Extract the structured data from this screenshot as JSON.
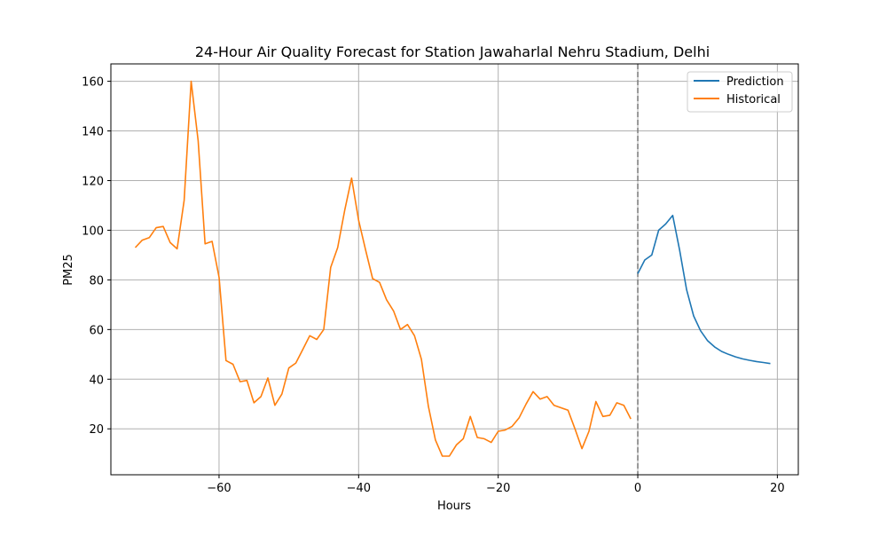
{
  "chart_data": {
    "type": "line",
    "title": "24-Hour Air Quality Forecast for Station Jawaharlal Nehru Stadium, Delhi",
    "xlabel": "Hours",
    "ylabel": "PM25",
    "xlim": [
      -75.5,
      23
    ],
    "ylim": [
      1.5,
      167
    ],
    "xticks": [
      -60,
      -40,
      -20,
      0,
      20
    ],
    "xtick_labels": [
      "−60",
      "−40",
      "−20",
      "0",
      "20"
    ],
    "yticks": [
      20,
      40,
      60,
      80,
      100,
      120,
      140,
      160
    ],
    "ytick_labels": [
      "20",
      "40",
      "60",
      "80",
      "100",
      "120",
      "140",
      "160"
    ],
    "grid": true,
    "legend_position": "top-right",
    "vertical_line": {
      "x": 0,
      "style": "dashed",
      "color": "#808080"
    },
    "series": [
      {
        "name": "Prediction",
        "color": "#1f77b4",
        "x": [
          0,
          1,
          2,
          3,
          4,
          5,
          6,
          7,
          8,
          9,
          10,
          11,
          12,
          13,
          14,
          15,
          16,
          17,
          18,
          19
        ],
        "y": [
          82.5,
          88,
          90,
          100,
          102.5,
          106,
          92,
          76,
          65.5,
          59.5,
          55.5,
          53,
          51.2,
          50,
          49,
          48.2,
          47.6,
          47.1,
          46.7,
          46.3
        ]
      },
      {
        "name": "Historical",
        "color": "#ff7f0e",
        "x": [
          -72,
          -71,
          -70,
          -69,
          -68,
          -67,
          -66,
          -65,
          -64,
          -63,
          -62,
          -61,
          -60,
          -59,
          -58,
          -57,
          -56,
          -55,
          -54,
          -53,
          -52,
          -51,
          -50,
          -49,
          -48,
          -47,
          -46,
          -45,
          -44,
          -43,
          -42,
          -41,
          -40,
          -39,
          -38,
          -37,
          -36,
          -35,
          -34,
          -33,
          -32,
          -31,
          -30,
          -29,
          -28,
          -27,
          -26,
          -25,
          -24,
          -23,
          -22,
          -21,
          -20,
          -19,
          -18,
          -17,
          -16,
          -15,
          -14,
          -13,
          -12,
          -11,
          -10,
          -9,
          -8,
          -7,
          -6,
          -5,
          -4,
          -3,
          -2,
          -1
        ],
        "y": [
          93,
          96,
          97,
          101,
          101.5,
          95,
          92.5,
          112,
          160,
          136,
          94.5,
          95.5,
          81,
          47.5,
          46,
          39,
          39.5,
          30.5,
          33,
          40.5,
          29.5,
          34,
          44.5,
          46.5,
          52,
          57.5,
          56,
          60,
          85,
          93,
          108,
          121,
          104,
          92,
          80.5,
          79,
          72,
          67.5,
          60,
          62,
          57.5,
          48,
          29,
          15.5,
          9,
          9,
          13.5,
          16,
          25,
          16.5,
          16,
          14.5,
          19,
          19.5,
          21,
          24.5,
          30,
          35,
          32,
          33,
          29.5,
          28.5,
          27.5,
          20,
          12,
          19,
          31,
          25,
          25.5,
          30.5,
          29.5,
          24
        ]
      }
    ]
  }
}
